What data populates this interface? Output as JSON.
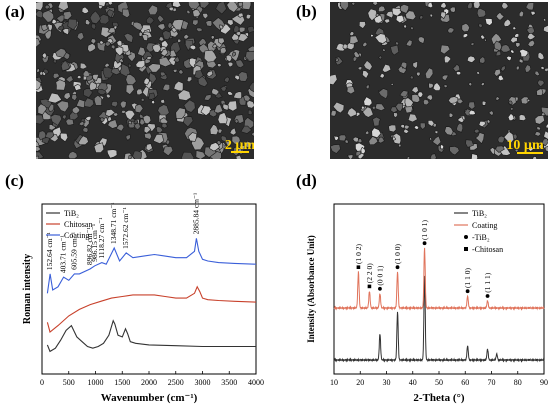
{
  "panels": {
    "a": {
      "label": "(a)",
      "scale_bar": "2 µm"
    },
    "b": {
      "label": "(b)",
      "scale_bar": "10 µm"
    },
    "c": {
      "label": "(c)"
    },
    "d": {
      "label": "(d)"
    }
  },
  "chart_data": [
    {
      "type": "line",
      "panel": "c",
      "xlabel": "Wavenumber (cm⁻¹)",
      "ylabel": "Roman intensity",
      "xlim": [
        0,
        4000
      ],
      "xticks": [
        "0",
        "500",
        "1000",
        "1500",
        "2000",
        "2500",
        "3000",
        "3500",
        "4000"
      ],
      "legend": [
        {
          "name": "TiB₂",
          "color": "#333333"
        },
        {
          "name": "Chitosan",
          "color": "#c8412b"
        },
        {
          "name": "Coating",
          "color": "#3a5fd9"
        }
      ],
      "legend_position": "top-left",
      "annotations": [
        {
          "x": 152.64,
          "text": "152.64 cm⁻¹"
        },
        {
          "x": 403.71,
          "text": "403.71 cm⁻¹"
        },
        {
          "x": 605.59,
          "text": "605.59 cm⁻¹"
        },
        {
          "x": 896.82,
          "text": "896.82 cm⁻¹"
        },
        {
          "x": 986.15,
          "text": "986.15 cm⁻¹"
        },
        {
          "x": 1118.27,
          "text": "1118.27 cm⁻¹"
        },
        {
          "x": 1348.71,
          "text": "1348.71 cm⁻¹"
        },
        {
          "x": 1572.62,
          "text": "1572.62 cm⁻¹"
        },
        {
          "x": 2885.84,
          "text": "2885.84 cm⁻¹"
        }
      ],
      "series": [
        {
          "name": "TiB₂",
          "color": "#333333",
          "x": [
            100,
            150,
            250,
            350,
            450,
            550,
            650,
            750,
            850,
            950,
            1050,
            1150,
            1250,
            1330,
            1360,
            1420,
            1500,
            1560,
            1600,
            1650,
            1750,
            2000,
            2500,
            3000,
            3500,
            4000
          ],
          "y": [
            0.18,
            0.14,
            0.16,
            0.21,
            0.27,
            0.3,
            0.23,
            0.2,
            0.17,
            0.16,
            0.17,
            0.19,
            0.24,
            0.33,
            0.31,
            0.24,
            0.23,
            0.28,
            0.25,
            0.2,
            0.19,
            0.18,
            0.175,
            0.17,
            0.17,
            0.17
          ]
        },
        {
          "name": "Chitosan",
          "color": "#c8412b",
          "x": [
            100,
            150,
            300,
            500,
            700,
            900,
            1100,
            1300,
            1500,
            1700,
            1900,
            2100,
            2300,
            2500,
            2700,
            2850,
            2900,
            2950,
            3000,
            3100,
            3300,
            3600,
            4000
          ],
          "y": [
            0.32,
            0.26,
            0.3,
            0.36,
            0.4,
            0.43,
            0.45,
            0.47,
            0.48,
            0.49,
            0.49,
            0.49,
            0.48,
            0.47,
            0.47,
            0.5,
            0.54,
            0.51,
            0.47,
            0.46,
            0.455,
            0.45,
            0.445
          ]
        },
        {
          "name": "Coating",
          "color": "#3a5fd9",
          "x": [
            100,
            152,
            200,
            300,
            404,
            500,
            606,
            700,
            897,
            986,
            1118,
            1200,
            1349,
            1450,
            1573,
            1700,
            1900,
            2100,
            2300,
            2500,
            2700,
            2850,
            2886,
            2930,
            3000,
            3100,
            3300,
            3600,
            4000
          ],
          "y": [
            0.5,
            0.62,
            0.52,
            0.54,
            0.6,
            0.58,
            0.62,
            0.62,
            0.65,
            0.67,
            0.69,
            0.68,
            0.78,
            0.7,
            0.75,
            0.72,
            0.73,
            0.74,
            0.73,
            0.72,
            0.72,
            0.76,
            0.84,
            0.76,
            0.71,
            0.7,
            0.69,
            0.685,
            0.68
          ]
        }
      ]
    },
    {
      "type": "line",
      "panel": "d",
      "xlabel": "2-Theta (°)",
      "ylabel": "Intensity (Absorbance Unit)",
      "xlim": [
        10,
        90
      ],
      "xticks": [
        "10",
        "20",
        "30",
        "40",
        "50",
        "60",
        "70",
        "80",
        "90"
      ],
      "legend": [
        {
          "name": "TiB₂",
          "color": "#333333",
          "kind": "line"
        },
        {
          "name": "Coating",
          "color": "#e0745c",
          "kind": "line"
        },
        {
          "name": "-TiB₂",
          "color": "#000000",
          "kind": "circle"
        },
        {
          "name": "-Chitosan",
          "color": "#000000",
          "kind": "square"
        }
      ],
      "legend_position": "top-right",
      "peak_labels": [
        {
          "x": 19.3,
          "text": "(1 0 2)",
          "marker": "square"
        },
        {
          "x": 23.5,
          "text": "(2 2 0)",
          "marker": "square"
        },
        {
          "x": 27.5,
          "text": "(0 0 1)",
          "marker": "circle"
        },
        {
          "x": 34.2,
          "text": "(1 0 0)",
          "marker": "circle"
        },
        {
          "x": 44.5,
          "text": "(1 0 1)",
          "marker": "circle"
        },
        {
          "x": 60.9,
          "text": "(1 1 0)",
          "marker": "circle"
        },
        {
          "x": 68.5,
          "text": "(1 1 1)",
          "marker": "circle"
        }
      ],
      "series": [
        {
          "name": "TiB₂",
          "color": "#333333",
          "peaks": [
            [
              27.5,
              0.22
            ],
            [
              34.2,
              0.4
            ],
            [
              44.5,
              0.7
            ],
            [
              60.9,
              0.12
            ],
            [
              68.5,
              0.09
            ],
            [
              72.0,
              0.05
            ]
          ]
        },
        {
          "name": "Coating",
          "color": "#e0745c",
          "peaks": [
            [
              19.3,
              0.3
            ],
            [
              23.5,
              0.14
            ],
            [
              27.5,
              0.12
            ],
            [
              34.2,
              0.3
            ],
            [
              44.5,
              0.5
            ],
            [
              60.9,
              0.1
            ],
            [
              68.5,
              0.06
            ]
          ]
        }
      ]
    }
  ]
}
